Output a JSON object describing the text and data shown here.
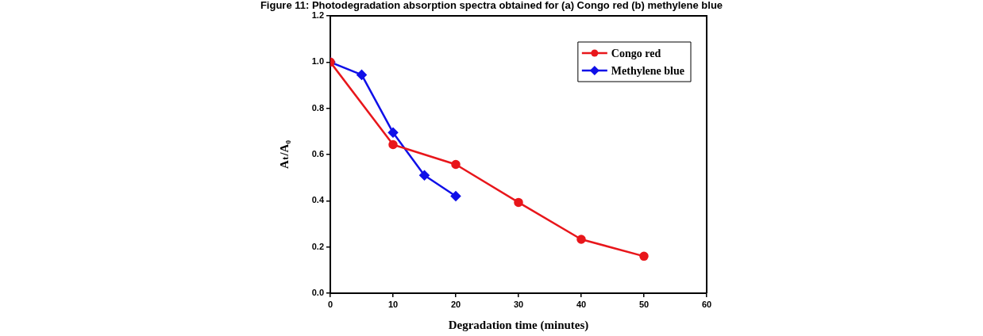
{
  "chart_data": {
    "type": "line",
    "title": "Figure 11: Photodegradation absorption spectra obtained for (a) Congo red (b) methylene blue",
    "xlabel": "Degradation time (minutes)",
    "ylabel": "Aₜ/A₀",
    "series": [
      {
        "name": "Congo red",
        "color": "#e8161b",
        "x": [
          0,
          10,
          20,
          30,
          40,
          50
        ],
        "values": [
          1.0,
          0.643,
          0.557,
          0.393,
          0.233,
          0.16
        ],
        "marker": "circle"
      },
      {
        "name": "Methylene blue",
        "color": "#1010e8",
        "x": [
          0,
          5,
          10,
          15,
          20
        ],
        "values": [
          1.0,
          0.945,
          0.695,
          0.51,
          0.42
        ],
        "marker": "diamond"
      }
    ],
    "xlim": [
      0,
      60
    ],
    "xticks": [
      0,
      10,
      20,
      30,
      40,
      50,
      60
    ],
    "ylim": [
      0,
      1.2
    ],
    "yticks": [
      {
        "value": 0,
        "label": "0.0"
      },
      0.2,
      0.4,
      0.6,
      0.8,
      {
        "value": 1,
        "label": "1.0"
      },
      1.2
    ],
    "grid": false,
    "legend": "top right",
    "line_style": "solid"
  }
}
